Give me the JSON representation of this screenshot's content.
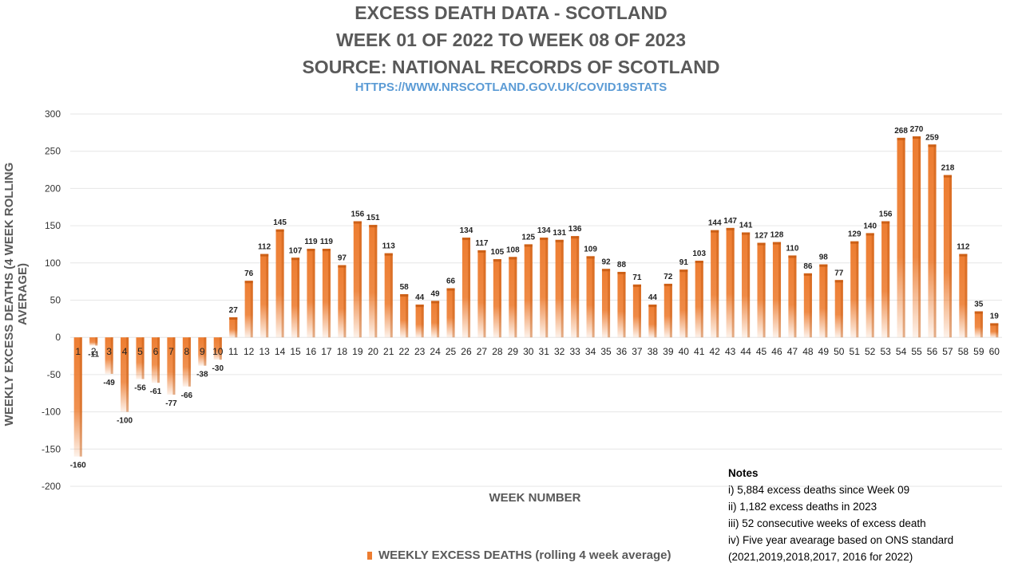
{
  "header": {
    "title_lines": [
      "EXCESS DEATH DATA - SCOTLAND",
      "WEEK 01 OF 2022 TO WEEK 08 OF 2023",
      "SOURCE: NATIONAL RECORDS OF SCOTLAND"
    ],
    "source_url": "HTTPS://WWW.NRSCOTLAND.GOV.UK/COVID19STATS"
  },
  "notes": {
    "title": "Notes",
    "items": [
      "i) 5,884 excess deaths since Week 09",
      "ii) 1,182 excess deaths in 2023",
      "iii) 52 consecutive weeks of excess death",
      "iv) Five year avearage based on ONS standard",
      "(2021,2019,2018,2017, 2016 for 2022)"
    ]
  },
  "colors": {
    "bar": "#ed7d31",
    "bar_dark": "#c55a11",
    "grid": "#e6e6e6",
    "text": "#595959"
  },
  "chart_data": {
    "type": "bar",
    "title": "EXCESS DEATH DATA - SCOTLAND",
    "xlabel": "WEEK NUMBER",
    "ylabel": "WEEKLY EXCESS DEATHS (4 WEEK ROLLING AVERAGE)",
    "ylim": [
      -200,
      300
    ],
    "yticks": [
      -200,
      -150,
      -100,
      -50,
      0,
      50,
      100,
      150,
      200,
      250,
      300
    ],
    "grid": true,
    "legend_position": "bottom",
    "categories": [
      "1",
      "2",
      "3",
      "4",
      "5",
      "6",
      "7",
      "8",
      "9",
      "10",
      "11",
      "12",
      "13",
      "14",
      "15",
      "16",
      "17",
      "18",
      "19",
      "20",
      "21",
      "22",
      "23",
      "24",
      "25",
      "26",
      "27",
      "28",
      "29",
      "30",
      "31",
      "32",
      "33",
      "34",
      "35",
      "36",
      "37",
      "38",
      "39",
      "40",
      "41",
      "42",
      "43",
      "44",
      "45",
      "46",
      "47",
      "48",
      "49",
      "50",
      "51",
      "52",
      "53",
      "54",
      "55",
      "56",
      "57",
      "58",
      "59",
      "60"
    ],
    "series": [
      {
        "name": "WEEKLY EXCESS DEATHS (rolling 4 week average)",
        "values": [
          -160,
          -11,
          -49,
          -100,
          -56,
          -61,
          -77,
          -66,
          -38,
          -30,
          27,
          76,
          112,
          145,
          107,
          119,
          119,
          97,
          156,
          151,
          113,
          58,
          44,
          49,
          66,
          134,
          117,
          105,
          108,
          125,
          134,
          131,
          136,
          109,
          92,
          88,
          71,
          44,
          72,
          91,
          103,
          144,
          147,
          141,
          127,
          128,
          110,
          86,
          98,
          77,
          129,
          140,
          156,
          268,
          270,
          259,
          218,
          112,
          35,
          19
        ]
      }
    ]
  }
}
